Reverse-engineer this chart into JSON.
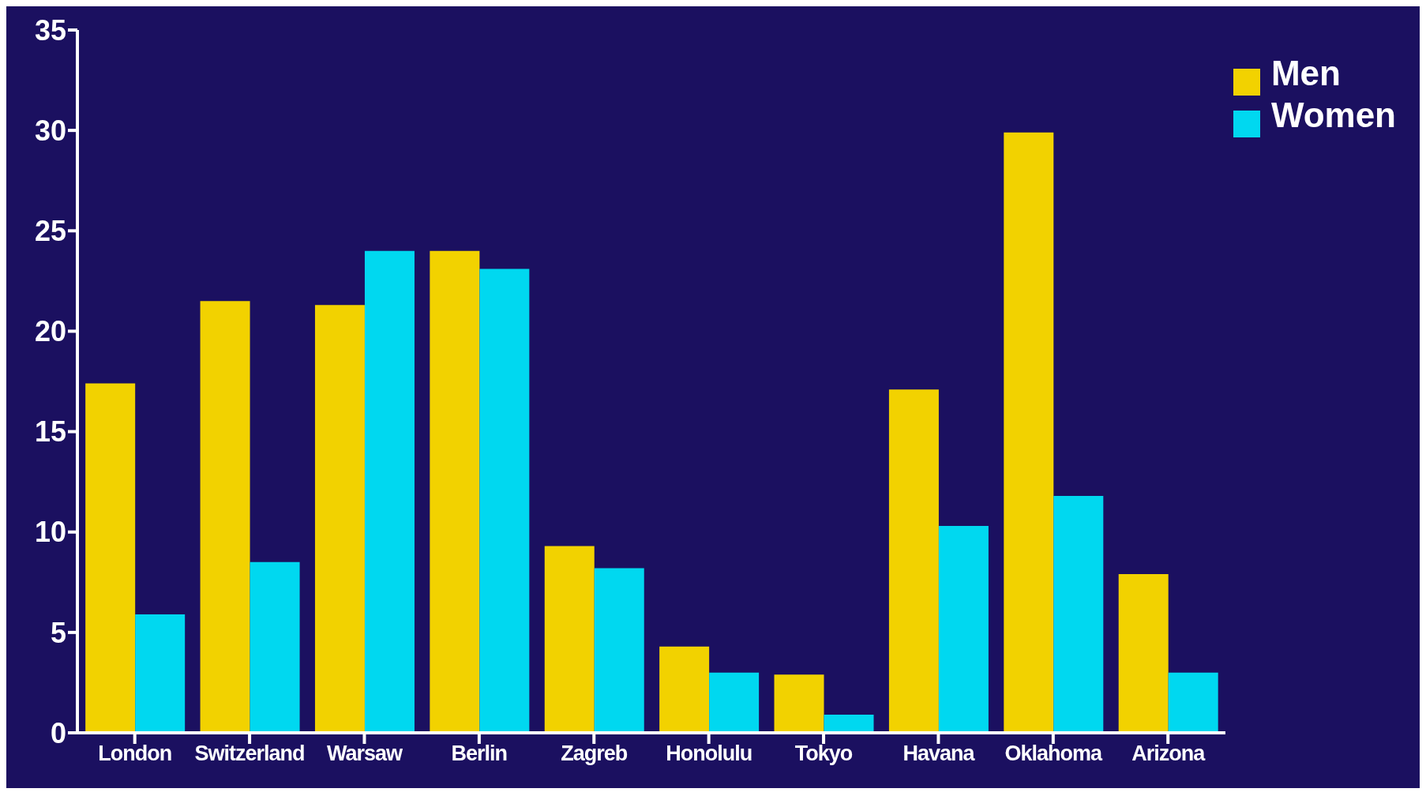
{
  "chart_data": {
    "type": "bar",
    "categories": [
      "London",
      "Switzerland",
      "Warsaw",
      "Berlin",
      "Zagreb",
      "Honolulu",
      "Tokyo",
      "Havana",
      "Oklahoma",
      "Arizona"
    ],
    "series": [
      {
        "name": "Men",
        "color": "#f2d200",
        "values": [
          17.4,
          21.5,
          21.3,
          24.0,
          9.3,
          4.3,
          2.9,
          17.1,
          29.9,
          7.9
        ]
      },
      {
        "name": "Women",
        "color": "#00d8f0",
        "values": [
          5.9,
          8.5,
          24.0,
          23.1,
          8.2,
          3.0,
          0.9,
          10.3,
          11.8,
          3.0
        ]
      }
    ],
    "ylim": [
      0,
      35
    ],
    "yticks": [
      0,
      5,
      10,
      15,
      20,
      25,
      30,
      35
    ],
    "legend": "top right"
  }
}
